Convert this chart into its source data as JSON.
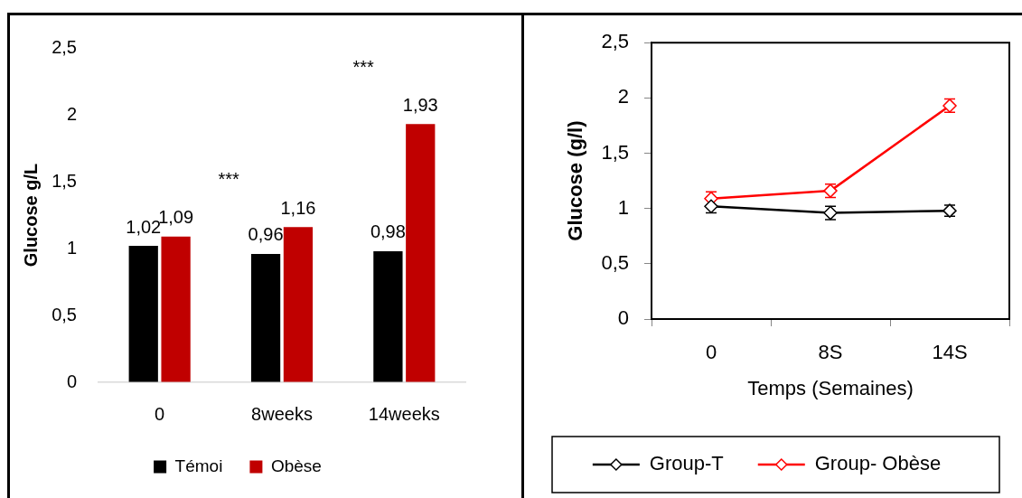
{
  "chart_data": [
    {
      "type": "bar",
      "ylabel": "Glucose g/L",
      "categories": [
        "0",
        "8weeks",
        "14weeks"
      ],
      "series": [
        {
          "name": "Témoi",
          "color": "#000000",
          "values": [
            1.02,
            0.96,
            0.98
          ],
          "value_labels": [
            "1,02",
            "0,96",
            "0,98"
          ]
        },
        {
          "name": "Obèse",
          "color": "#c00000",
          "values": [
            1.09,
            1.16,
            1.93
          ],
          "value_labels": [
            "1,09",
            "1,16",
            "1,93"
          ]
        }
      ],
      "ylim": [
        0,
        2.5
      ],
      "yticks": [
        0,
        {
          "value": 0.5,
          "label": "0,5"
        },
        1,
        {
          "value": 1.5,
          "label": "1,5"
        },
        2,
        {
          "value": 2.5,
          "label": "2,5"
        }
      ],
      "legend": "bottom",
      "annotations": [
        "***",
        "***"
      ]
    },
    {
      "type": "line",
      "xlabel": "Temps (Semaines)",
      "ylabel": "Glucose (g/l)",
      "categories": [
        "0",
        "8S",
        "14S"
      ],
      "series": [
        {
          "name": "Group-T",
          "color": "#000000",
          "values": [
            1.02,
            0.96,
            0.98
          ],
          "errors": [
            0.06,
            0.06,
            0.05
          ]
        },
        {
          "name": "Group- Obèse",
          "color": "#ff0000",
          "values": [
            1.09,
            1.16,
            1.93
          ],
          "errors": [
            0.06,
            0.06,
            0.06
          ]
        }
      ],
      "ylim": [
        0,
        2.5
      ],
      "yticks": [
        0,
        {
          "value": 0.5,
          "label": "0,5"
        },
        1,
        {
          "value": 1.5,
          "label": "1,5"
        },
        2,
        {
          "value": 2.5,
          "label": "2,5"
        }
      ],
      "legend": "bottom",
      "marker": "diamond",
      "line_style": "solid"
    }
  ]
}
